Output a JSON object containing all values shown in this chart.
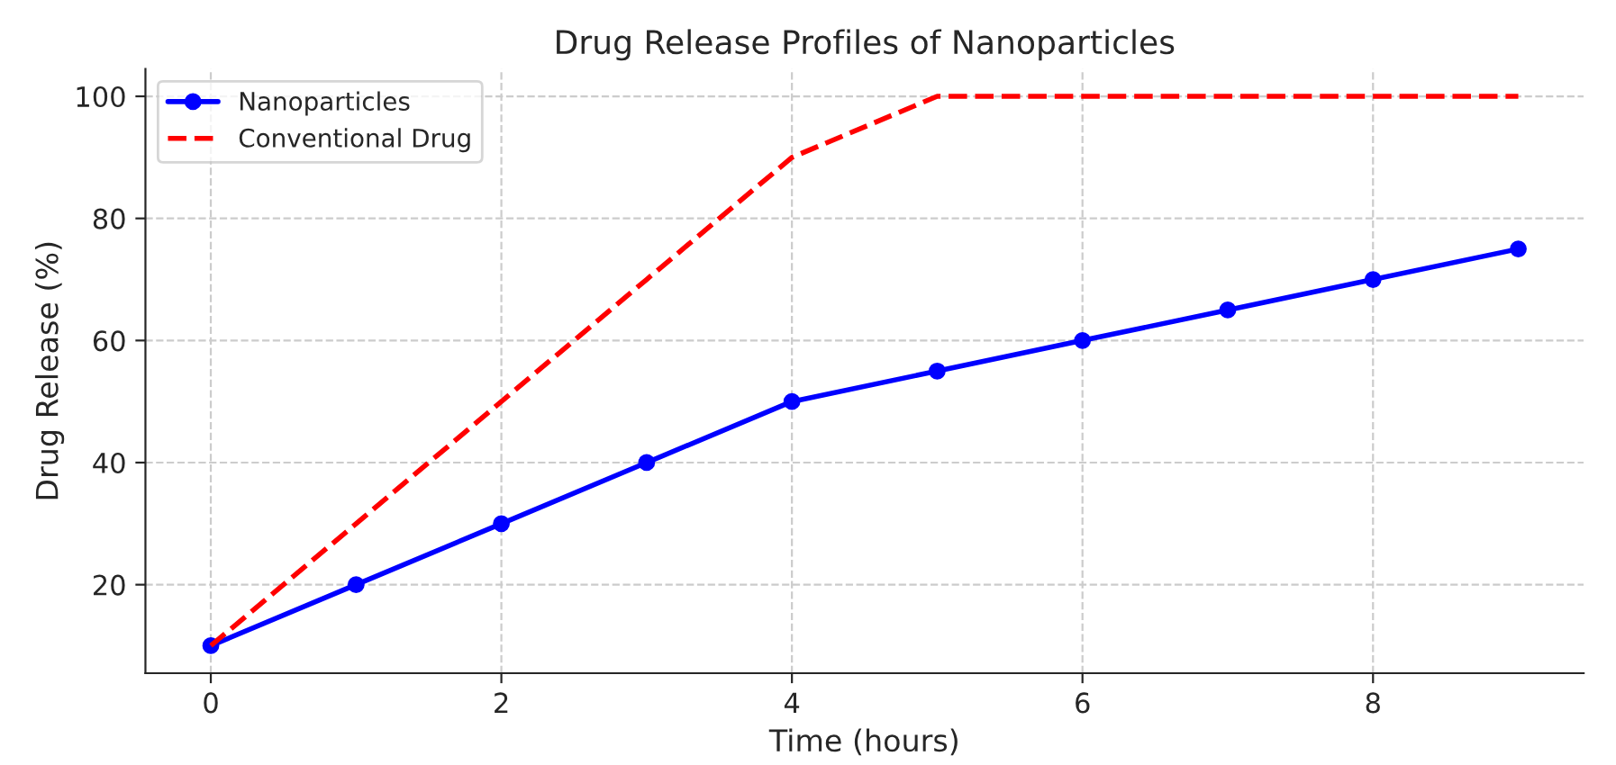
{
  "chart_data": {
    "type": "line",
    "title": "Drug Release Profiles of Nanoparticles",
    "xlabel": "Time (hours)",
    "ylabel": "Drug Release (%)",
    "x": [
      0,
      1,
      2,
      3,
      4,
      5,
      6,
      7,
      8,
      9
    ],
    "series": [
      {
        "name": "Nanoparticles",
        "color": "#0000ff",
        "values": [
          10,
          20,
          30,
          40,
          50,
          55,
          60,
          65,
          70,
          75
        ],
        "marker": "circle",
        "line_style": "solid"
      },
      {
        "name": "Conventional Drug",
        "color": "#ff0000",
        "values": [
          10,
          30,
          50,
          70,
          90,
          100,
          100,
          100,
          100,
          100
        ],
        "marker": "none",
        "line_style": "dashed"
      }
    ],
    "xlim": [
      -0.45,
      9.45
    ],
    "xticks": [
      0,
      2,
      4,
      6,
      8
    ],
    "ylim": [
      5.5,
      104.5
    ],
    "yticks": [
      20,
      40,
      60,
      80,
      100
    ],
    "grid": true,
    "legend": "top left"
  }
}
